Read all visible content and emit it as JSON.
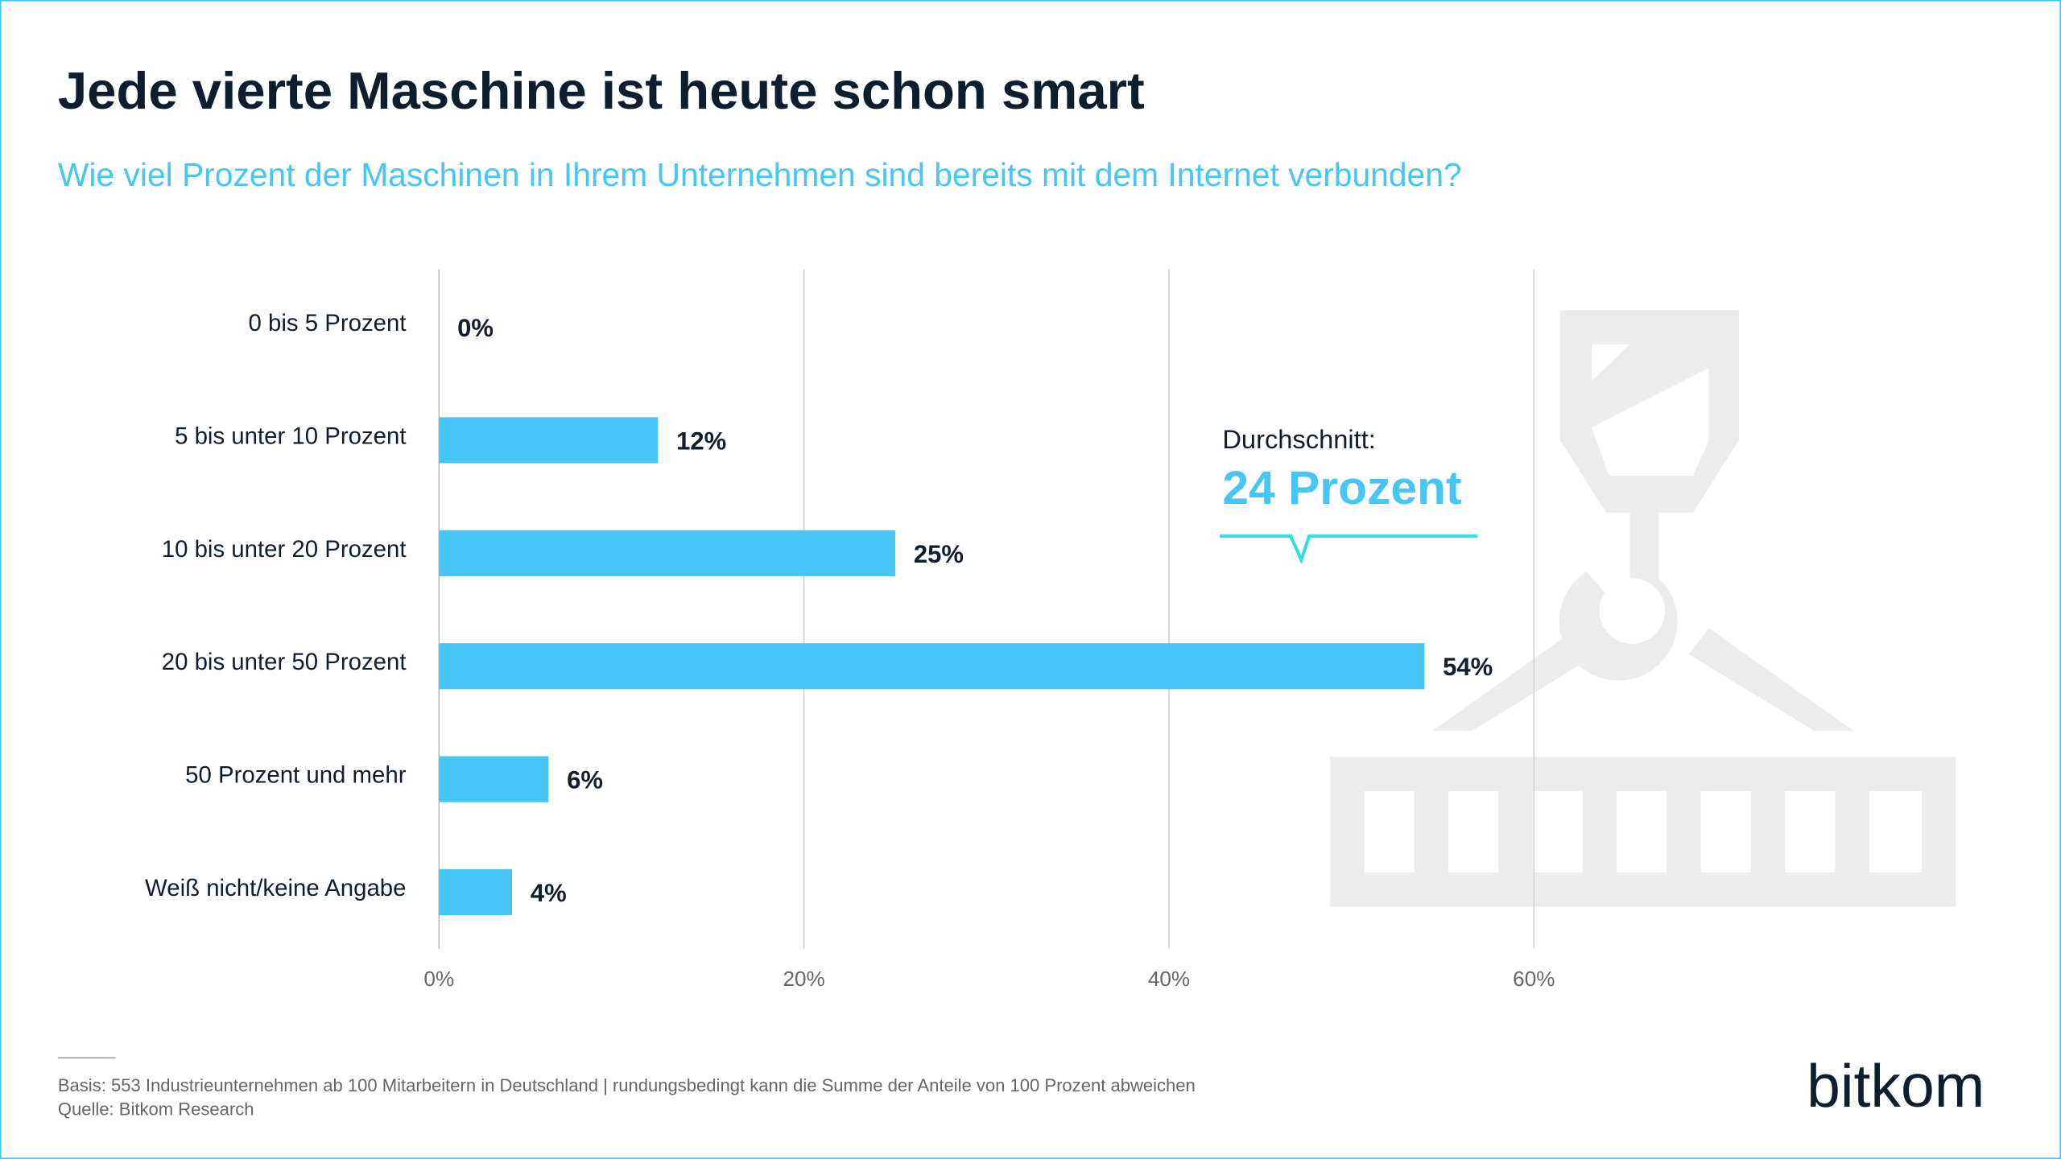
{
  "chart_data": {
    "type": "bar",
    "orientation": "horizontal",
    "title": "Jede vierte Maschine ist heute schon smart",
    "subtitle": "Wie viel Prozent der Maschinen in Ihrem Unternehmen sind bereits mit dem Internet verbunden?",
    "categories": [
      "0 bis 5 Prozent",
      "5 bis unter 10 Prozent",
      "10 bis unter 20 Prozent",
      "20 bis unter 50 Prozent",
      "50 Prozent und mehr",
      "Weiß nicht/keine Angabe"
    ],
    "values": [
      0,
      12,
      25,
      54,
      6,
      4
    ],
    "value_labels": [
      "0%",
      "12%",
      "25%",
      "54%",
      "6%",
      "4%"
    ],
    "color": "#45c6f7",
    "xlim": [
      0,
      60
    ],
    "xticks": [
      {
        "value": 0,
        "label": "0%"
      },
      {
        "value": 20,
        "label": "20%"
      },
      {
        "value": 40,
        "label": "40%"
      },
      {
        "value": 60,
        "label": "60%"
      }
    ],
    "grid": true,
    "annotation": {
      "label": "Durchschnitt:",
      "value_text": "24 Prozent"
    },
    "footnote": "Basis: 553 Industrieunternehmen ab 100 Mitarbeitern in Deutschland | rundungsbedingt kann die Summe der Anteile von 100 Prozent abweichen",
    "source": "Quelle: Bitkom Research",
    "logo": "bitkom"
  }
}
